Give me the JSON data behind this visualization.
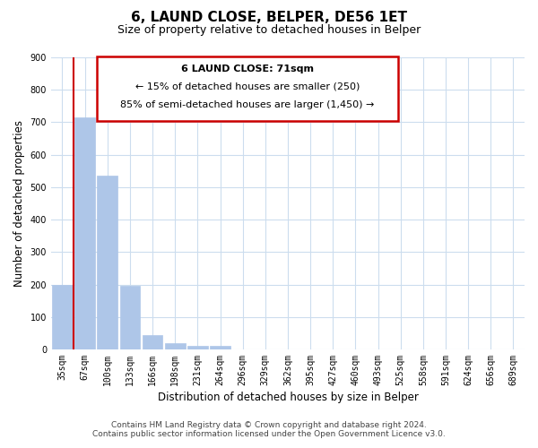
{
  "title": "6, LAUND CLOSE, BELPER, DE56 1ET",
  "subtitle": "Size of property relative to detached houses in Belper",
  "xlabel": "Distribution of detached houses by size in Belper",
  "ylabel": "Number of detached properties",
  "bar_values": [
    200,
    715,
    535,
    195,
    45,
    20,
    12,
    10,
    0,
    0,
    0,
    0,
    0,
    0,
    0,
    0,
    0,
    0,
    0,
    0,
    0
  ],
  "bar_labels": [
    "35sqm",
    "67sqm",
    "100sqm",
    "133sqm",
    "166sqm",
    "198sqm",
    "231sqm",
    "264sqm",
    "296sqm",
    "329sqm",
    "362sqm",
    "395sqm",
    "427sqm",
    "460sqm",
    "493sqm",
    "525sqm",
    "558sqm",
    "591sqm",
    "624sqm",
    "656sqm",
    "689sqm"
  ],
  "bar_color": "#aec6e8",
  "bar_edge_color": "#aec6e8",
  "ylim": [
    0,
    900
  ],
  "yticks": [
    0,
    100,
    200,
    300,
    400,
    500,
    600,
    700,
    800,
    900
  ],
  "property_line_x": 0.5,
  "annotation_text_line1": "6 LAUND CLOSE: 71sqm",
  "annotation_text_line2": "← 15% of detached houses are smaller (250)",
  "annotation_text_line3": "85% of semi-detached houses are larger (1,450) →",
  "annotation_box_color": "#ffffff",
  "annotation_box_edge": "#cc0000",
  "property_line_color": "#cc0000",
  "footer_line1": "Contains HM Land Registry data © Crown copyright and database right 2024.",
  "footer_line2": "Contains public sector information licensed under the Open Government Licence v3.0.",
  "background_color": "#ffffff",
  "grid_color": "#ccddee",
  "title_fontsize": 11,
  "subtitle_fontsize": 9,
  "axis_label_fontsize": 8.5,
  "tick_fontsize": 7,
  "footer_fontsize": 6.5
}
